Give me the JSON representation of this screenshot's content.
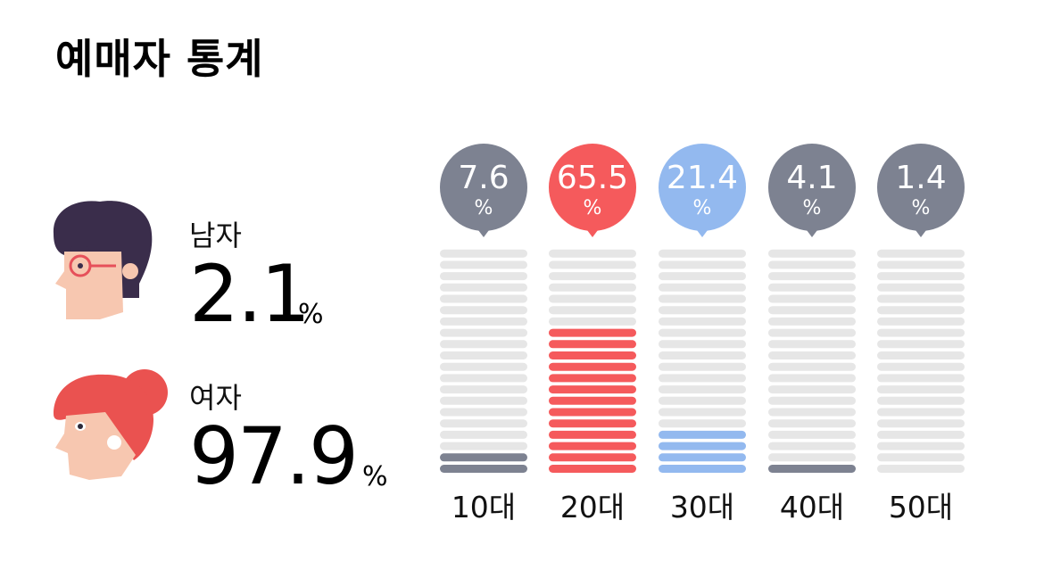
{
  "page": {
    "title": "예매자 통계"
  },
  "gender": {
    "male": {
      "label": "남자",
      "value": "2.1",
      "unit": "%"
    },
    "female": {
      "label": "여자",
      "value": "97.9",
      "unit": "%"
    }
  },
  "colors": {
    "inactive_bar": "#e6e6e6",
    "gray": "#7d8291",
    "red": "#f55a5c",
    "blue": "#93b9ef"
  },
  "chart_data": {
    "type": "bar",
    "categories": [
      "10대",
      "20대",
      "30대",
      "40대",
      "50대"
    ],
    "values": [
      7.6,
      65.5,
      21.4,
      4.1,
      1.4
    ],
    "value_labels": [
      "7.6",
      "65.5",
      "21.4",
      "4.1",
      "1.4"
    ],
    "unit": "%",
    "segments_per_bar": 20,
    "filled_segments": [
      2,
      13,
      4,
      1,
      0
    ],
    "series_colors": [
      "#7d8291",
      "#f55a5c",
      "#93b9ef",
      "#7d8291",
      "#7d8291"
    ],
    "title": "",
    "xlabel": "",
    "ylabel": "",
    "ylim": [
      0,
      100
    ],
    "grid": false
  }
}
